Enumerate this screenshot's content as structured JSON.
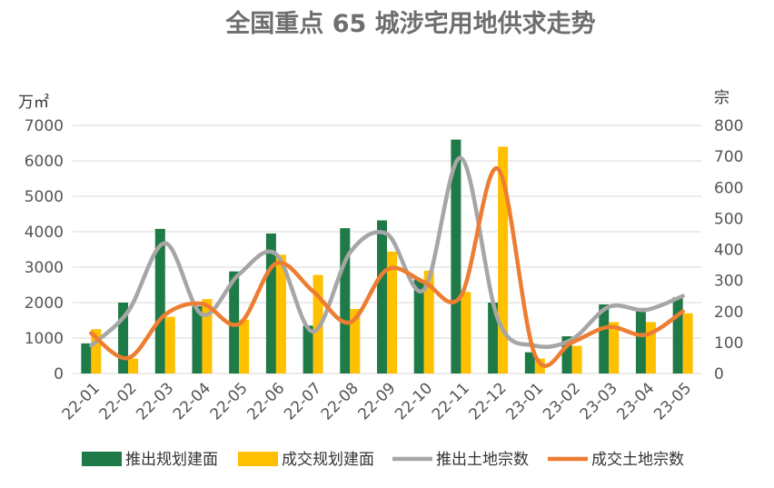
{
  "chart_data": {
    "type": "bar",
    "title": "全国重点 65 城涉宅用地供求走势",
    "y_left_label": "万㎡",
    "y_right_label": "宗",
    "ylim_left": [
      0,
      7000
    ],
    "yticks_left": [
      "0",
      "1000",
      "2000",
      "3000",
      "4000",
      "5000",
      "6000",
      "7000"
    ],
    "ylim_right": [
      0,
      800
    ],
    "yticks_right": [
      "0",
      "100",
      "200",
      "300",
      "400",
      "500",
      "600",
      "700",
      "800"
    ],
    "categories": [
      "22-01",
      "22-02",
      "22-03",
      "22-04",
      "22-05",
      "22-06",
      "22-07",
      "22-08",
      "22-09",
      "22-10",
      "22-11",
      "22-12",
      "23-01",
      "23-02",
      "23-03",
      "23-04",
      "23-05"
    ],
    "series": [
      {
        "name": "推出规划建面",
        "kind": "bar",
        "axis": "left",
        "color": "#1e7a46",
        "values": [
          850,
          2000,
          4080,
          1900,
          2880,
          3950,
          1350,
          4100,
          4320,
          2650,
          6600,
          2000,
          600,
          1050,
          1950,
          1850,
          2150
        ]
      },
      {
        "name": "成交规划建面",
        "kind": "bar",
        "axis": "left",
        "color": "#ffc000",
        "values": [
          1250,
          420,
          1600,
          2100,
          1520,
          3350,
          2780,
          1820,
          3440,
          2900,
          2300,
          6400,
          420,
          780,
          1450,
          1450,
          1700
        ]
      },
      {
        "name": "推出土地宗数",
        "kind": "line",
        "axis": "right",
        "color": "#a6a6a6",
        "values": [
          90,
          200,
          420,
          190,
          320,
          385,
          135,
          390,
          450,
          270,
          695,
          175,
          90,
          110,
          215,
          205,
          250
        ]
      },
      {
        "name": "成交土地宗数",
        "kind": "line",
        "axis": "right",
        "color": "#ed7d31",
        "values": [
          130,
          50,
          190,
          225,
          160,
          355,
          265,
          165,
          335,
          295,
          250,
          660,
          60,
          100,
          150,
          125,
          200
        ]
      }
    ],
    "grid": true,
    "legend_position": "bottom"
  }
}
